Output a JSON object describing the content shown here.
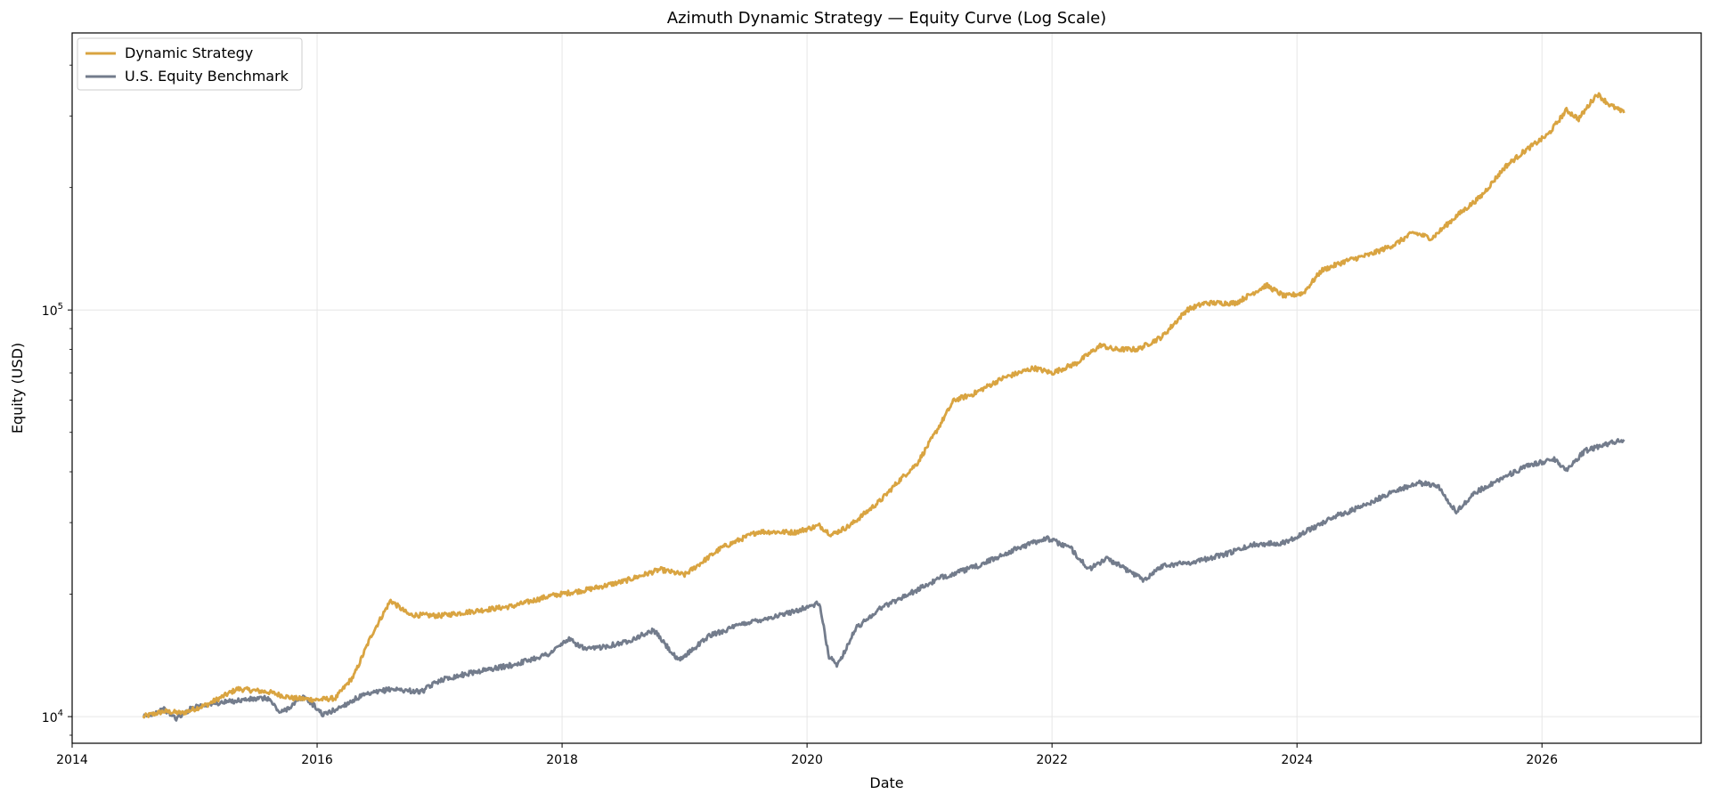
{
  "chart_data": {
    "type": "line",
    "title": "Azimuth Dynamic Strategy — Equity Curve (Log Scale)",
    "xlabel": "Date",
    "ylabel": "Equity (USD)",
    "xlim": [
      2014.0,
      2027.3
    ],
    "ylim": [
      8600,
      480000
    ],
    "y_scale": "log",
    "grid": true,
    "legend_position": "top-left",
    "x_ticks": [
      "2014",
      "2016",
      "2018",
      "2020",
      "2022",
      "2024",
      "2026"
    ],
    "y_ticks": [
      {
        "base": "10",
        "exp": "4",
        "value": 10000
      },
      {
        "base": "10",
        "exp": "5",
        "value": 100000
      }
    ],
    "series": [
      {
        "name": "Dynamic Strategy",
        "color": "#D9A441",
        "points": [
          [
            2014.58,
            10000
          ],
          [
            2014.75,
            10300
          ],
          [
            2014.9,
            10200
          ],
          [
            2015.1,
            10700
          ],
          [
            2015.35,
            11700
          ],
          [
            2015.6,
            11500
          ],
          [
            2015.8,
            11100
          ],
          [
            2016.0,
            11000
          ],
          [
            2016.15,
            11100
          ],
          [
            2016.3,
            12600
          ],
          [
            2016.45,
            16000
          ],
          [
            2016.6,
            19300
          ],
          [
            2016.75,
            17800
          ],
          [
            2017.0,
            17700
          ],
          [
            2017.3,
            18200
          ],
          [
            2017.6,
            18700
          ],
          [
            2017.9,
            19800
          ],
          [
            2018.2,
            20500
          ],
          [
            2018.5,
            21500
          ],
          [
            2018.8,
            23000
          ],
          [
            2019.0,
            22300
          ],
          [
            2019.3,
            26000
          ],
          [
            2019.6,
            28500
          ],
          [
            2019.9,
            28400
          ],
          [
            2020.1,
            29500
          ],
          [
            2020.2,
            28000
          ],
          [
            2020.35,
            29500
          ],
          [
            2020.6,
            34000
          ],
          [
            2020.75,
            38000
          ],
          [
            2020.9,
            42000
          ],
          [
            2021.05,
            50000
          ],
          [
            2021.2,
            60000
          ],
          [
            2021.35,
            62000
          ],
          [
            2021.6,
            68000
          ],
          [
            2021.85,
            72000
          ],
          [
            2022.0,
            70000
          ],
          [
            2022.2,
            74000
          ],
          [
            2022.4,
            82000
          ],
          [
            2022.5,
            80000
          ],
          [
            2022.7,
            80000
          ],
          [
            2022.9,
            86000
          ],
          [
            2023.1,
            100000
          ],
          [
            2023.25,
            104000
          ],
          [
            2023.5,
            104000
          ],
          [
            2023.75,
            115000
          ],
          [
            2023.9,
            108000
          ],
          [
            2024.05,
            110000
          ],
          [
            2024.2,
            125000
          ],
          [
            2024.4,
            132000
          ],
          [
            2024.6,
            137000
          ],
          [
            2024.8,
            145000
          ],
          [
            2024.95,
            155000
          ],
          [
            2025.1,
            150000
          ],
          [
            2025.3,
            170000
          ],
          [
            2025.5,
            190000
          ],
          [
            2025.7,
            225000
          ],
          [
            2025.85,
            245000
          ],
          [
            2026.05,
            270000
          ],
          [
            2026.2,
            310000
          ],
          [
            2026.3,
            295000
          ],
          [
            2026.45,
            340000
          ],
          [
            2026.55,
            320000
          ],
          [
            2026.67,
            305000
          ]
        ]
      },
      {
        "name": "U.S. Equity Benchmark",
        "color": "#737C8C",
        "points": [
          [
            2014.58,
            10000
          ],
          [
            2014.75,
            10400
          ],
          [
            2014.85,
            9900
          ],
          [
            2015.0,
            10600
          ],
          [
            2015.2,
            10800
          ],
          [
            2015.4,
            11000
          ],
          [
            2015.6,
            11100
          ],
          [
            2015.7,
            10200
          ],
          [
            2015.9,
            11200
          ],
          [
            2016.05,
            10100
          ],
          [
            2016.15,
            10400
          ],
          [
            2016.35,
            11200
          ],
          [
            2016.6,
            11700
          ],
          [
            2016.85,
            11500
          ],
          [
            2017.0,
            12300
          ],
          [
            2017.3,
            12900
          ],
          [
            2017.6,
            13400
          ],
          [
            2017.9,
            14300
          ],
          [
            2018.05,
            15500
          ],
          [
            2018.2,
            14600
          ],
          [
            2018.5,
            15200
          ],
          [
            2018.75,
            16300
          ],
          [
            2018.95,
            13700
          ],
          [
            2019.2,
            15800
          ],
          [
            2019.5,
            17000
          ],
          [
            2019.8,
            17800
          ],
          [
            2020.1,
            19000
          ],
          [
            2020.18,
            14000
          ],
          [
            2020.25,
            13400
          ],
          [
            2020.4,
            16500
          ],
          [
            2020.6,
            18500
          ],
          [
            2020.9,
            20500
          ],
          [
            2021.1,
            22000
          ],
          [
            2021.4,
            23500
          ],
          [
            2021.7,
            25800
          ],
          [
            2021.95,
            27500
          ],
          [
            2022.15,
            26000
          ],
          [
            2022.3,
            23000
          ],
          [
            2022.45,
            24500
          ],
          [
            2022.75,
            21700
          ],
          [
            2022.9,
            23500
          ],
          [
            2023.15,
            24000
          ],
          [
            2023.4,
            25000
          ],
          [
            2023.65,
            26500
          ],
          [
            2023.9,
            26800
          ],
          [
            2024.1,
            28800
          ],
          [
            2024.3,
            31000
          ],
          [
            2024.55,
            33000
          ],
          [
            2024.8,
            36000
          ],
          [
            2025.0,
            37500
          ],
          [
            2025.15,
            37000
          ],
          [
            2025.3,
            31800
          ],
          [
            2025.45,
            35500
          ],
          [
            2025.7,
            39000
          ],
          [
            2025.9,
            41500
          ],
          [
            2026.1,
            43000
          ],
          [
            2026.2,
            40500
          ],
          [
            2026.35,
            45000
          ],
          [
            2026.5,
            46500
          ],
          [
            2026.67,
            48000
          ]
        ]
      }
    ]
  }
}
